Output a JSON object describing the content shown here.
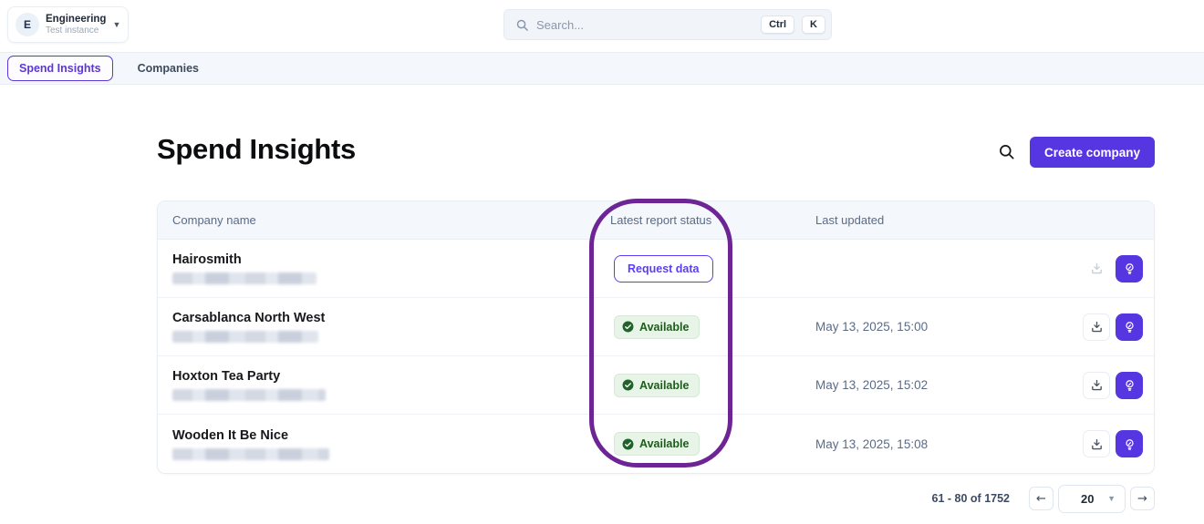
{
  "workspace": {
    "avatar_initial": "E",
    "name": "Engineering",
    "subtitle": "Test instance"
  },
  "search": {
    "placeholder": "Search...",
    "shortcut_keys": [
      "Ctrl",
      "K"
    ]
  },
  "nav": {
    "tabs": [
      {
        "label": "Spend Insights",
        "active": true
      },
      {
        "label": "Companies",
        "active": false
      }
    ]
  },
  "page": {
    "title": "Spend Insights",
    "create_button_label": "Create company"
  },
  "table": {
    "columns": [
      "Company name",
      "Latest report status",
      "Last updated"
    ],
    "rows": [
      {
        "name": "Hairosmith",
        "status": "request_data",
        "status_label": "Request data",
        "updated": "",
        "download_enabled": false,
        "redacted_width": 158
      },
      {
        "name": "Carsablanca North West",
        "status": "available",
        "status_label": "Available",
        "updated": "May 13, 2025, 15:00",
        "download_enabled": true,
        "redacted_width": 160
      },
      {
        "name": "Hoxton Tea Party",
        "status": "available",
        "status_label": "Available",
        "updated": "May 13, 2025, 15:02",
        "download_enabled": true,
        "redacted_width": 168
      },
      {
        "name": "Wooden It Be Nice",
        "status": "available",
        "status_label": "Available",
        "updated": "May 13, 2025, 15:08",
        "download_enabled": true,
        "redacted_width": 172
      }
    ]
  },
  "pagination": {
    "range_text": "61 - 80 of 1752",
    "page_size": "20",
    "prev_label": "←",
    "next_label": "→"
  },
  "annotation": {
    "target": "latest-report-status-column",
    "color": "#6d2596"
  },
  "colors": {
    "accent_purple": "#5636e0",
    "outline_purple": "#5b3df5",
    "annotation_purple": "#6d2596",
    "available_bg": "#e9f4e9",
    "available_text": "#1d5c1d",
    "header_bg": "#f4f7fb",
    "muted_text": "#5a6b87"
  }
}
